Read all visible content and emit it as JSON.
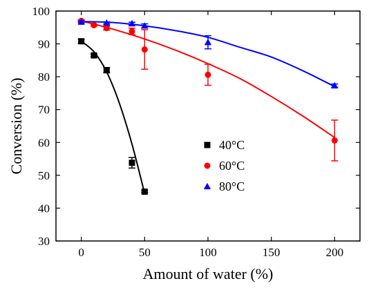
{
  "chart_data": {
    "type": "scatter",
    "title": "",
    "xlabel": "Amount of water (%)",
    "ylabel": "Conversion  (%)",
    "xlim": [
      -20,
      220
    ],
    "ylim": [
      30,
      100
    ],
    "xticks": [
      0,
      50,
      100,
      150,
      200
    ],
    "yticks": [
      30,
      40,
      50,
      60,
      70,
      80,
      90,
      100
    ],
    "grid": false,
    "legend_position": "center-right",
    "series": [
      {
        "name": "40°C",
        "marker": "square",
        "color": "#000000",
        "points": [
          {
            "x": 0,
            "y": 90.8,
            "err": 0.6
          },
          {
            "x": 10,
            "y": 86.5,
            "err": 0.4
          },
          {
            "x": 20,
            "y": 82.0,
            "err": 0.8
          },
          {
            "x": 40,
            "y": 53.8,
            "err": 1.6
          },
          {
            "x": 50,
            "y": 45.0,
            "err": 0.3
          }
        ],
        "fit": [
          [
            0,
            90.8
          ],
          [
            10,
            87.6
          ],
          [
            20,
            81.5
          ],
          [
            30,
            72.0
          ],
          [
            40,
            59.5
          ],
          [
            50,
            44.5
          ]
        ]
      },
      {
        "name": "60°C",
        "marker": "circle",
        "color": "#ff0000",
        "points": [
          {
            "x": 0,
            "y": 97.0,
            "err": 0.3
          },
          {
            "x": 10,
            "y": 95.7,
            "err": 0.3
          },
          {
            "x": 20,
            "y": 94.8,
            "err": 0.6
          },
          {
            "x": 40,
            "y": 93.8,
            "err": 1.0
          },
          {
            "x": 50,
            "y": 88.3,
            "err": 6.0
          },
          {
            "x": 100,
            "y": 80.6,
            "err": 3.2
          },
          {
            "x": 200,
            "y": 60.6,
            "err": 6.2
          }
        ],
        "fit": [
          [
            0,
            97.0
          ],
          [
            25,
            94.5
          ],
          [
            50,
            91.5
          ],
          [
            75,
            88.0
          ],
          [
            100,
            84.0
          ],
          [
            125,
            79.5
          ],
          [
            150,
            74.0
          ],
          [
            175,
            68.0
          ],
          [
            200,
            61.5
          ]
        ]
      },
      {
        "name": "80°C",
        "marker": "triangle",
        "color": "#0000ff",
        "points": [
          {
            "x": 0,
            "y": 96.7,
            "err": 0.3
          },
          {
            "x": 20,
            "y": 96.4,
            "err": 0.3
          },
          {
            "x": 40,
            "y": 96.2,
            "err": 0.4
          },
          {
            "x": 50,
            "y": 95.5,
            "err": 0.6
          },
          {
            "x": 100,
            "y": 90.5,
            "err": 2.0
          },
          {
            "x": 200,
            "y": 77.3,
            "err": 0.5
          }
        ],
        "fit": [
          [
            0,
            96.8
          ],
          [
            25,
            96.5
          ],
          [
            50,
            95.5
          ],
          [
            75,
            94.0
          ],
          [
            100,
            92.0
          ],
          [
            125,
            89.0
          ],
          [
            150,
            86.0
          ],
          [
            175,
            81.8
          ],
          [
            200,
            77.0
          ]
        ]
      }
    ]
  }
}
